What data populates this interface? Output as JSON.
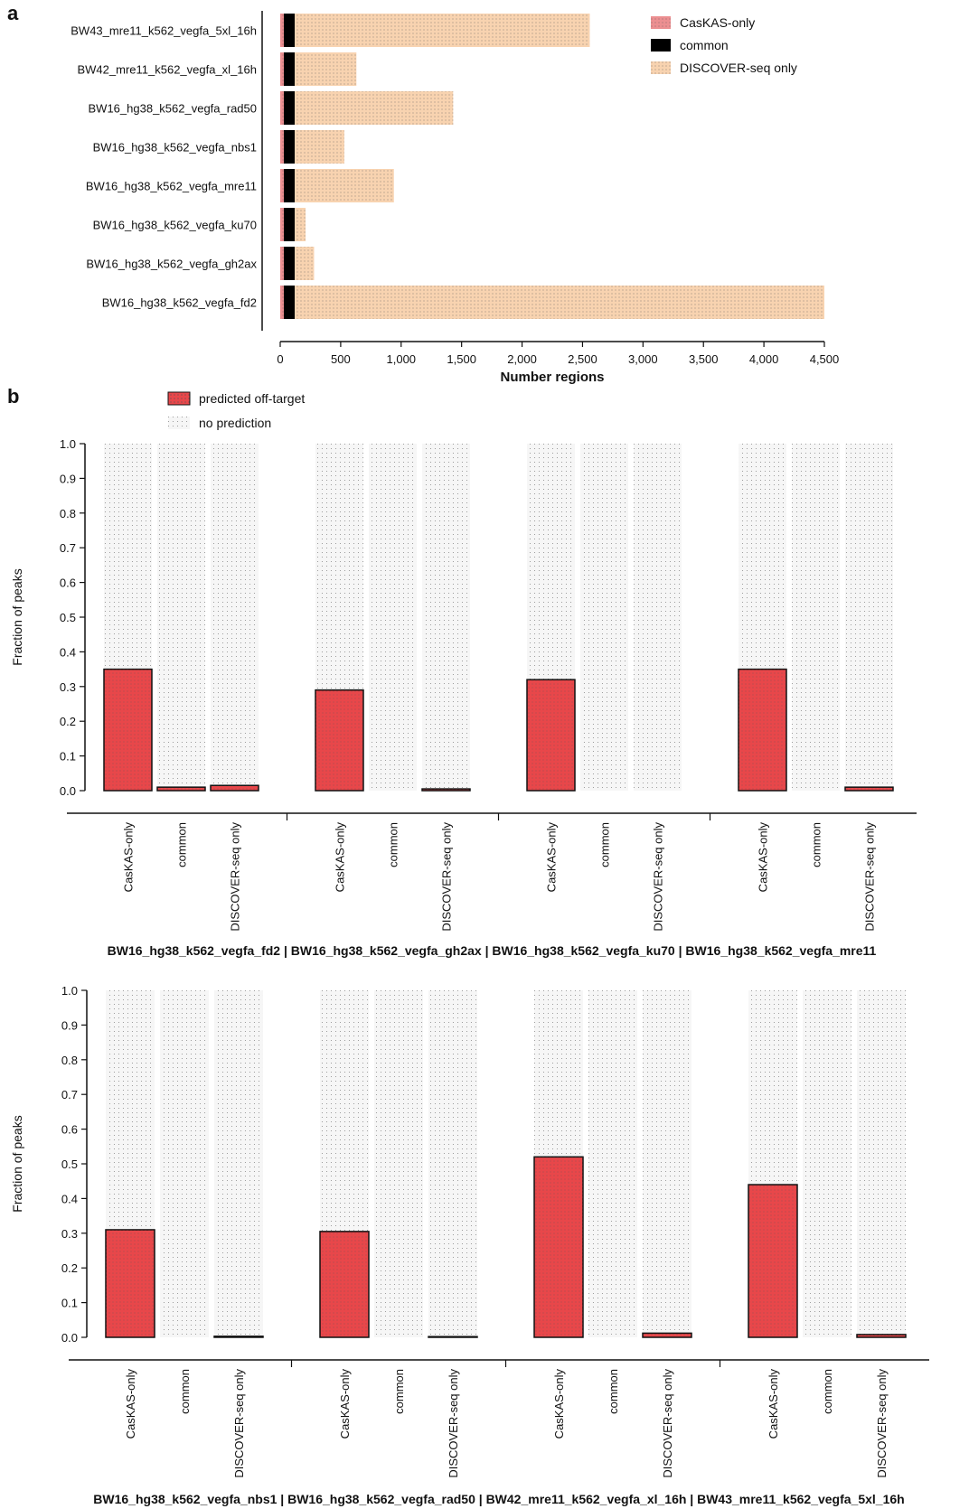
{
  "panel_a": {
    "letter": "a",
    "chart_data": {
      "type": "bar",
      "orientation": "horizontal",
      "stacked": true,
      "categories": [
        "BW43_mre11_k562_vegfa_5xl_16h",
        "BW42_mre11_k562_vegfa_xl_16h",
        "BW16_hg38_k562_vegfa_rad50",
        "BW16_hg38_k562_vegfa_nbs1",
        "BW16_hg38_k562_vegfa_mre11",
        "BW16_hg38_k562_vegfa_ku70",
        "BW16_hg38_k562_vegfa_gh2ax",
        "BW16_hg38_k562_vegfa_fd2"
      ],
      "series": [
        {
          "name": "CasKAS-only",
          "values": [
            30,
            30,
            30,
            30,
            30,
            30,
            30,
            30
          ],
          "color": "#e8474a"
        },
        {
          "name": "common",
          "values": [
            90,
            90,
            90,
            90,
            90,
            90,
            90,
            90
          ],
          "color": "#000000"
        },
        {
          "name": "DISCOVER-seq only",
          "values": [
            2440,
            510,
            1310,
            410,
            820,
            90,
            160,
            4380
          ],
          "color": "#f7cfa8"
        }
      ],
      "xlabel": "Number regions",
      "xlim": [
        0,
        4500
      ],
      "xticks": [
        "0",
        "500",
        "1,000",
        "1,500",
        "2,000",
        "2,500",
        "3,000",
        "3,500",
        "4,000",
        "4,500"
      ],
      "legend_position": "top-right"
    }
  },
  "panel_b": {
    "letter": "b",
    "legend": [
      {
        "name": "predicted off-target",
        "color": "#e8474a"
      },
      {
        "name": "no prediction",
        "color": "#f4f4f4"
      }
    ],
    "chart_data": [
      {
        "type": "bar",
        "stacked": true,
        "ylabel": "Fraction of peaks",
        "ylim": [
          0,
          1
        ],
        "yticks": [
          "0.0",
          "0.1",
          "0.2",
          "0.3",
          "0.4",
          "0.5",
          "0.6",
          "0.7",
          "0.8",
          "0.9",
          "1.0"
        ],
        "bar_labels": [
          "CasKAS-only",
          "common",
          "DISCOVER-seq only"
        ],
        "group_caption": "BW16_hg38_k562_vegfa_fd2 | BW16_hg38_k562_vegfa_gh2ax | BW16_hg38_k562_vegfa_ku70 | BW16_hg38_k562_vegfa_mre11",
        "groups": [
          {
            "predicted": [
              0.35,
              0.01,
              0.015
            ]
          },
          {
            "predicted": [
              0.29,
              0.0,
              0.005
            ]
          },
          {
            "predicted": [
              0.32,
              0.0,
              0.0
            ]
          },
          {
            "predicted": [
              0.35,
              0.0,
              0.01
            ]
          }
        ]
      },
      {
        "type": "bar",
        "stacked": true,
        "ylabel": "Fraction of peaks",
        "ylim": [
          0,
          1
        ],
        "yticks": [
          "0.0",
          "0.1",
          "0.2",
          "0.3",
          "0.4",
          "0.5",
          "0.6",
          "0.7",
          "0.8",
          "0.9",
          "1.0"
        ],
        "bar_labels": [
          "CasKAS-only",
          "common",
          "DISCOVER-seq only"
        ],
        "group_caption": "BW16_hg38_k562_vegfa_nbs1  | BW16_hg38_k562_vegfa_rad50 | BW42_mre11_k562_vegfa_xl_16h | BW43_mre11_k562_vegfa_5xl_16h",
        "groups": [
          {
            "predicted": [
              0.31,
              0.0,
              0.003
            ]
          },
          {
            "predicted": [
              0.305,
              0.0,
              0.002
            ]
          },
          {
            "predicted": [
              0.52,
              0.0,
              0.012
            ]
          },
          {
            "predicted": [
              0.44,
              0.0,
              0.008
            ]
          }
        ]
      }
    ]
  }
}
